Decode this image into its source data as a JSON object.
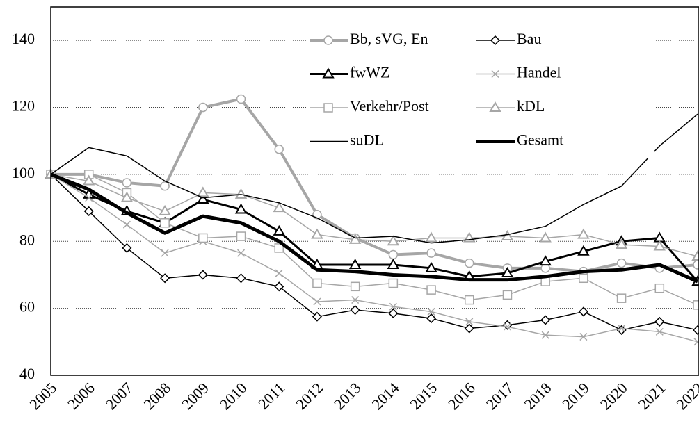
{
  "chart_data": {
    "type": "line",
    "categories": [
      "2005",
      "2006",
      "2007",
      "2008",
      "2009",
      "2010",
      "2011",
      "2012",
      "2013",
      "2014",
      "2015",
      "2016",
      "2017",
      "2018",
      "2019",
      "2020",
      "2021",
      "2022"
    ],
    "ylim": [
      40,
      150
    ],
    "yticks": [
      40,
      60,
      80,
      100,
      120,
      140
    ],
    "grid": true,
    "series": [
      {
        "name": "Bb, sVG, En",
        "color": "#a6a6a6",
        "width": 4,
        "marker": "circle",
        "values": [
          100,
          100,
          97.5,
          96.5,
          120,
          122.5,
          107.5,
          88,
          81,
          76,
          76.5,
          73.5,
          72,
          72,
          71,
          73.5,
          72,
          73
        ]
      },
      {
        "name": "Bau",
        "color": "#000000",
        "width": 1.5,
        "marker": "diamond",
        "values": [
          100,
          89,
          78,
          69,
          70,
          69,
          66.5,
          57.5,
          59.5,
          58.5,
          57,
          54,
          55,
          56.5,
          59,
          53.5,
          56,
          53.5
        ]
      },
      {
        "name": "fwWZ",
        "color": "#000000",
        "width": 3,
        "marker": "triangle",
        "values": [
          100,
          94,
          89,
          85.5,
          92.5,
          89.5,
          83,
          73,
          73,
          73,
          72,
          69.5,
          70.5,
          74,
          77,
          80,
          81,
          68
        ]
      },
      {
        "name": "Handel",
        "color": "#a6a6a6",
        "width": 1.5,
        "marker": "x",
        "values": [
          100,
          93,
          85,
          76.5,
          80,
          76.5,
          70.5,
          62,
          62.5,
          60.5,
          59,
          56,
          54.5,
          52,
          51.5,
          54,
          53,
          50
        ]
      },
      {
        "name": "Verkehr/Post",
        "color": "#a6a6a6",
        "width": 1.5,
        "marker": "square",
        "values": [
          100,
          100,
          94.5,
          85.5,
          81,
          81.5,
          78,
          67.5,
          66.5,
          67.5,
          65.5,
          62.5,
          64,
          68,
          69,
          63,
          66,
          61
        ]
      },
      {
        "name": "kDL",
        "color": "#a6a6a6",
        "width": 1.5,
        "marker": "triangle",
        "values": [
          100,
          98,
          93,
          89,
          94.5,
          94,
          90,
          82,
          80.5,
          80,
          81,
          81,
          81.5,
          81,
          82,
          79,
          78.5,
          75.5
        ]
      },
      {
        "name": "suDL",
        "color": "#000000",
        "width": 1.5,
        "marker": "none",
        "values": [
          100,
          108,
          105.5,
          98,
          93,
          94,
          91.5,
          87,
          81,
          81.5,
          79.5,
          80.5,
          82,
          84.5,
          91,
          96.5,
          108.5,
          118
        ]
      },
      {
        "name": "Gesamt",
        "color": "#000000",
        "width": 5,
        "marker": "none",
        "values": [
          100,
          95.5,
          88.5,
          82.5,
          87.5,
          85.5,
          80,
          71.5,
          71,
          70,
          69.5,
          68.5,
          68.5,
          69.5,
          71,
          71.5,
          73,
          68
        ]
      }
    ]
  }
}
